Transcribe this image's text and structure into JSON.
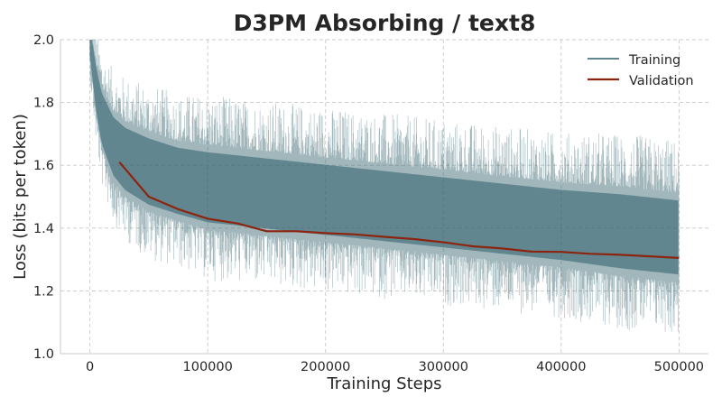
{
  "chart_data": {
    "type": "line",
    "title": "D3PM Absorbing / text8",
    "xlabel": "Training Steps",
    "ylabel": "Loss (bits per token)",
    "xlim": [
      -25000,
      525000
    ],
    "ylim": [
      1.0,
      2.0
    ],
    "xticks": [
      0,
      100000,
      200000,
      300000,
      400000,
      500000
    ],
    "xtick_labels": [
      "0",
      "100000",
      "200000",
      "300000",
      "400000",
      "500000"
    ],
    "yticks": [
      1.0,
      1.2,
      1.4,
      1.6,
      1.8,
      2.0
    ],
    "ytick_labels": [
      "1.0",
      "1.2",
      "1.4",
      "1.6",
      "1.8",
      "2.0"
    ],
    "grid": true,
    "legend_position": "top-right",
    "series": [
      {
        "name": "Training",
        "color": "#2f5f6a",
        "style": "noisy-band",
        "x": [
          0,
          5000,
          10000,
          20000,
          30000,
          50000,
          75000,
          100000,
          150000,
          200000,
          250000,
          300000,
          350000,
          400000,
          450000,
          500000
        ],
        "values": [
          2.0,
          1.85,
          1.75,
          1.66,
          1.62,
          1.58,
          1.55,
          1.53,
          1.51,
          1.49,
          1.47,
          1.45,
          1.43,
          1.41,
          1.39,
          1.37
        ],
        "spread": [
          0.08,
          0.11,
          0.13,
          0.15,
          0.16,
          0.17,
          0.17,
          0.18,
          0.18,
          0.18,
          0.18,
          0.18,
          0.18,
          0.18,
          0.19,
          0.19
        ]
      },
      {
        "name": "Validation",
        "color": "#8b2510",
        "style": "line",
        "x": [
          25000,
          50000,
          75000,
          100000,
          125000,
          150000,
          175000,
          200000,
          225000,
          250000,
          275000,
          300000,
          325000,
          350000,
          375000,
          400000,
          425000,
          450000,
          475000,
          500000
        ],
        "values": [
          1.61,
          1.5,
          1.46,
          1.43,
          1.415,
          1.39,
          1.39,
          1.384,
          1.38,
          1.372,
          1.365,
          1.355,
          1.342,
          1.335,
          1.325,
          1.324,
          1.318,
          1.315,
          1.31,
          1.305
        ]
      }
    ]
  }
}
